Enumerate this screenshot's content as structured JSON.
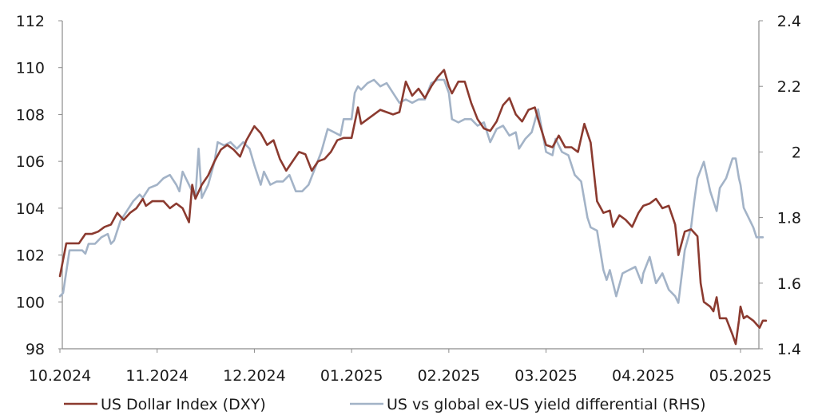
{
  "chart_data": {
    "type": "line",
    "title": "",
    "xlabel": "",
    "ylabel": "",
    "y2label": "",
    "ylim": [
      98,
      112
    ],
    "y2lim": [
      1.4,
      2.4
    ],
    "yticks": [
      "98",
      "100",
      "102",
      "104",
      "106",
      "108",
      "110",
      "112"
    ],
    "y2ticks": [
      "1.4",
      "1.6",
      "1.8",
      "2",
      "2.2",
      "2.4"
    ],
    "xticks": [
      "10.2024",
      "11.2024",
      "12.2024",
      "01.2025",
      "02.2025",
      "03.2025",
      "04.2025",
      "05.2025"
    ],
    "grid": false,
    "legend_position": "bottom",
    "colors": {
      "dxy": "#8b3a2f",
      "yield": "#a3b3c7"
    },
    "series": [
      {
        "name": "US Dollar Index (DXY)",
        "axis": "left",
        "points": [
          [
            "10.2024",
            101.1
          ],
          [
            "10.2024+2",
            102.5
          ],
          [
            "10.2024+4",
            102.5
          ],
          [
            "10.2024+6",
            102.5
          ],
          [
            "10.2024+8",
            102.9
          ],
          [
            "10.2024+10",
            102.9
          ],
          [
            "10.2024+12",
            103.0
          ],
          [
            "10.2024+14",
            103.2
          ],
          [
            "10.2024+16",
            103.3
          ],
          [
            "10.2024+18",
            103.8
          ],
          [
            "10.2024+20",
            103.5
          ],
          [
            "10.2024+22",
            103.8
          ],
          [
            "10.2024+24",
            104.0
          ],
          [
            "10.2024+26",
            104.4
          ],
          [
            "10.2024+27",
            104.1
          ],
          [
            "10.2024+29",
            104.3
          ],
          [
            "11.2024",
            104.3
          ],
          [
            "11.2024+2",
            104.3
          ],
          [
            "11.2024+4",
            104.0
          ],
          [
            "11.2024+6",
            104.2
          ],
          [
            "11.2024+8",
            104.0
          ],
          [
            "11.2024+10",
            103.4
          ],
          [
            "11.2024+11",
            105.0
          ],
          [
            "11.2024+12",
            104.4
          ],
          [
            "11.2024+14",
            105.0
          ],
          [
            "11.2024+16",
            105.4
          ],
          [
            "11.2024+18",
            106.0
          ],
          [
            "11.2024+20",
            106.5
          ],
          [
            "11.2024+22",
            106.7
          ],
          [
            "11.2024+24",
            106.5
          ],
          [
            "11.2024+26",
            106.2
          ],
          [
            "11.2024+28",
            106.9
          ],
          [
            "12.2024",
            107.5
          ],
          [
            "12.2024+2",
            107.2
          ],
          [
            "12.2024+4",
            106.7
          ],
          [
            "12.2024+6",
            106.9
          ],
          [
            "12.2024+8",
            106.1
          ],
          [
            "12.2024+10",
            105.6
          ],
          [
            "12.2024+12",
            106.0
          ],
          [
            "12.2024+14",
            106.4
          ],
          [
            "12.2024+16",
            106.3
          ],
          [
            "12.2024+18",
            105.6
          ],
          [
            "12.2024+20",
            106.0
          ],
          [
            "12.2024+22",
            106.1
          ],
          [
            "12.2024+24",
            106.4
          ],
          [
            "12.2024+26",
            106.9
          ],
          [
            "12.2024+28",
            107.0
          ],
          [
            "12.2024+30",
            107.0
          ],
          [
            "01.2025",
            107.0
          ],
          [
            "01.2025+2",
            108.3
          ],
          [
            "01.2025+3",
            107.6
          ],
          [
            "01.2025+5",
            107.8
          ],
          [
            "01.2025+7",
            108.0
          ],
          [
            "01.2025+9",
            108.2
          ],
          [
            "01.2025+11",
            108.1
          ],
          [
            "01.2025+13",
            108.0
          ],
          [
            "01.2025+15",
            108.1
          ],
          [
            "01.2025+17",
            109.4
          ],
          [
            "01.2025+19",
            108.8
          ],
          [
            "01.2025+21",
            109.1
          ],
          [
            "01.2025+23",
            108.7
          ],
          [
            "01.2025+25",
            109.2
          ],
          [
            "01.2025+27",
            109.6
          ],
          [
            "01.2025+29",
            109.9
          ],
          [
            "02.2025",
            109.2
          ],
          [
            "02.2025+1",
            108.9
          ],
          [
            "02.2025+3",
            109.4
          ],
          [
            "02.2025+5",
            109.4
          ],
          [
            "02.2025+7",
            108.5
          ],
          [
            "02.2025+9",
            107.8
          ],
          [
            "02.2025+11",
            107.4
          ],
          [
            "02.2025+13",
            107.3
          ],
          [
            "02.2025+15",
            107.7
          ],
          [
            "02.2025+17",
            108.4
          ],
          [
            "02.2025+19",
            108.7
          ],
          [
            "02.2025+21",
            108.0
          ],
          [
            "02.2025+23",
            107.7
          ],
          [
            "02.2025+25",
            108.2
          ],
          [
            "02.2025+27",
            108.3
          ],
          [
            "02.2025+28",
            107.8
          ],
          [
            "03.2025",
            106.7
          ],
          [
            "03.2025+2",
            106.6
          ],
          [
            "03.2025+4",
            107.1
          ],
          [
            "03.2025+6",
            106.6
          ],
          [
            "03.2025+8",
            106.6
          ],
          [
            "03.2025+10",
            106.4
          ],
          [
            "03.2025+12",
            107.6
          ],
          [
            "03.2025+14",
            106.8
          ],
          [
            "03.2025+16",
            104.3
          ],
          [
            "03.2025+18",
            103.8
          ],
          [
            "03.2025+20",
            103.9
          ],
          [
            "03.2025+21",
            103.2
          ],
          [
            "03.2025+23",
            103.7
          ],
          [
            "03.2025+25",
            103.5
          ],
          [
            "03.2025+27",
            103.2
          ],
          [
            "03.2025+29",
            103.8
          ],
          [
            "04.2025",
            104.1
          ],
          [
            "04.2025+2",
            104.2
          ],
          [
            "04.2025+4",
            104.4
          ],
          [
            "04.2025+6",
            104.0
          ],
          [
            "04.2025+8",
            104.1
          ],
          [
            "04.2025+10",
            103.3
          ],
          [
            "04.2025+11",
            102.0
          ],
          [
            "04.2025+13",
            103.0
          ],
          [
            "04.2025+15",
            103.1
          ],
          [
            "04.2025+17",
            102.8
          ],
          [
            "04.2025+18",
            100.8
          ],
          [
            "04.2025+19",
            100.0
          ],
          [
            "04.2025+21",
            99.8
          ],
          [
            "04.2025+22",
            99.6
          ],
          [
            "04.2025+23",
            100.2
          ],
          [
            "04.2025+24",
            99.3
          ],
          [
            "04.2025+26",
            99.3
          ],
          [
            "04.2025+28",
            98.6
          ],
          [
            "04.2025+29",
            98.2
          ],
          [
            "04.2025+30",
            99.2
          ],
          [
            "05.2025",
            99.8
          ],
          [
            "05.2025+1",
            99.3
          ],
          [
            "05.2025+2",
            99.4
          ],
          [
            "05.2025+4",
            99.2
          ],
          [
            "05.2025+6",
            98.9
          ],
          [
            "05.2025+7",
            99.2
          ],
          [
            "05.2025+8",
            99.2
          ]
        ]
      },
      {
        "name": "US vs global ex-US yield differential (RHS)",
        "axis": "right",
        "points": [
          [
            "10.2024",
            1.56
          ],
          [
            "10.2024+1",
            1.57
          ],
          [
            "10.2024+3",
            1.7
          ],
          [
            "10.2024+5",
            1.7
          ],
          [
            "10.2024+7",
            1.7
          ],
          [
            "10.2024+8",
            1.69
          ],
          [
            "10.2024+9",
            1.72
          ],
          [
            "10.2024+11",
            1.72
          ],
          [
            "10.2024+13",
            1.74
          ],
          [
            "10.2024+15",
            1.75
          ],
          [
            "10.2024+16",
            1.72
          ],
          [
            "10.2024+17",
            1.73
          ],
          [
            "10.2024+19",
            1.79
          ],
          [
            "10.2024+21",
            1.82
          ],
          [
            "10.2024+23",
            1.85
          ],
          [
            "10.2024+25",
            1.87
          ],
          [
            "10.2024+26",
            1.86
          ],
          [
            "10.2024+28",
            1.89
          ],
          [
            "11.2024",
            1.9
          ],
          [
            "11.2024+2",
            1.92
          ],
          [
            "11.2024+4",
            1.93
          ],
          [
            "11.2024+6",
            1.9
          ],
          [
            "11.2024+7",
            1.88
          ],
          [
            "11.2024+8",
            1.94
          ],
          [
            "11.2024+10",
            1.9
          ],
          [
            "11.2024+12",
            1.86
          ],
          [
            "11.2024+13",
            2.01
          ],
          [
            "11.2024+14",
            1.86
          ],
          [
            "11.2024+16",
            1.9
          ],
          [
            "11.2024+18",
            1.97
          ],
          [
            "11.2024+19",
            2.03
          ],
          [
            "11.2024+21",
            2.02
          ],
          [
            "11.2024+23",
            2.03
          ],
          [
            "11.2024+25",
            2.01
          ],
          [
            "11.2024+27",
            2.03
          ],
          [
            "11.2024+29",
            2.01
          ],
          [
            "12.2024",
            1.96
          ],
          [
            "12.2024+2",
            1.9
          ],
          [
            "12.2024+3",
            1.94
          ],
          [
            "12.2024+5",
            1.9
          ],
          [
            "12.2024+7",
            1.91
          ],
          [
            "12.2024+9",
            1.91
          ],
          [
            "12.2024+11",
            1.93
          ],
          [
            "12.2024+13",
            1.88
          ],
          [
            "12.2024+15",
            1.88
          ],
          [
            "12.2024+17",
            1.9
          ],
          [
            "12.2024+19",
            1.95
          ],
          [
            "12.2024+21",
            2.0
          ],
          [
            "12.2024+23",
            2.07
          ],
          [
            "12.2024+25",
            2.06
          ],
          [
            "12.2024+27",
            2.05
          ],
          [
            "12.2024+28",
            2.1
          ],
          [
            "01.2025",
            2.1
          ],
          [
            "01.2025+1",
            2.18
          ],
          [
            "01.2025+2",
            2.2
          ],
          [
            "01.2025+3",
            2.19
          ],
          [
            "01.2025+5",
            2.21
          ],
          [
            "01.2025+7",
            2.22
          ],
          [
            "01.2025+9",
            2.2
          ],
          [
            "01.2025+11",
            2.21
          ],
          [
            "01.2025+13",
            2.18
          ],
          [
            "01.2025+15",
            2.15
          ],
          [
            "01.2025+17",
            2.16
          ],
          [
            "01.2025+19",
            2.15
          ],
          [
            "01.2025+21",
            2.16
          ],
          [
            "01.2025+23",
            2.16
          ],
          [
            "01.2025+25",
            2.21
          ],
          [
            "01.2025+27",
            2.22
          ],
          [
            "01.2025+29",
            2.22
          ],
          [
            "02.2025",
            2.18
          ],
          [
            "02.2025+1",
            2.1
          ],
          [
            "02.2025+3",
            2.09
          ],
          [
            "02.2025+5",
            2.1
          ],
          [
            "02.2025+7",
            2.1
          ],
          [
            "02.2025+9",
            2.08
          ],
          [
            "02.2025+11",
            2.09
          ],
          [
            "02.2025+13",
            2.03
          ],
          [
            "02.2025+15",
            2.07
          ],
          [
            "02.2025+17",
            2.08
          ],
          [
            "02.2025+19",
            2.05
          ],
          [
            "02.2025+21",
            2.06
          ],
          [
            "02.2025+22",
            2.01
          ],
          [
            "02.2025+24",
            2.04
          ],
          [
            "02.2025+26",
            2.06
          ],
          [
            "02.2025+28",
            2.13
          ],
          [
            "03.2025",
            2.0
          ],
          [
            "03.2025+2",
            1.99
          ],
          [
            "03.2025+3",
            2.04
          ],
          [
            "03.2025+5",
            2.0
          ],
          [
            "03.2025+7",
            1.99
          ],
          [
            "03.2025+9",
            1.93
          ],
          [
            "03.2025+11",
            1.91
          ],
          [
            "03.2025+13",
            1.8
          ],
          [
            "03.2025+14",
            1.77
          ],
          [
            "03.2025+16",
            1.76
          ],
          [
            "03.2025+18",
            1.64
          ],
          [
            "03.2025+19",
            1.61
          ],
          [
            "03.2025+20",
            1.64
          ],
          [
            "03.2025+22",
            1.56
          ],
          [
            "03.2025+24",
            1.63
          ],
          [
            "03.2025+26",
            1.64
          ],
          [
            "03.2025+28",
            1.65
          ],
          [
            "03.2025+30",
            1.6
          ],
          [
            "04.2025",
            1.63
          ],
          [
            "04.2025+2",
            1.68
          ],
          [
            "04.2025+4",
            1.6
          ],
          [
            "04.2025+6",
            1.63
          ],
          [
            "04.2025+8",
            1.58
          ],
          [
            "04.2025+10",
            1.56
          ],
          [
            "04.2025+11",
            1.54
          ],
          [
            "04.2025+13",
            1.7
          ],
          [
            "04.2025+15",
            1.77
          ],
          [
            "04.2025+16",
            1.85
          ],
          [
            "04.2025+17",
            1.92
          ],
          [
            "04.2025+19",
            1.97
          ],
          [
            "04.2025+21",
            1.88
          ],
          [
            "04.2025+23",
            1.82
          ],
          [
            "04.2025+24",
            1.89
          ],
          [
            "04.2025+26",
            1.92
          ],
          [
            "04.2025+28",
            1.98
          ],
          [
            "04.2025+29",
            1.98
          ],
          [
            "04.2025+30",
            1.92
          ],
          [
            "05.2025",
            1.9
          ],
          [
            "05.2025+1",
            1.83
          ],
          [
            "05.2025+3",
            1.79
          ],
          [
            "05.2025+4",
            1.77
          ],
          [
            "05.2025+5",
            1.74
          ],
          [
            "05.2025+7",
            1.74
          ]
        ]
      }
    ]
  }
}
